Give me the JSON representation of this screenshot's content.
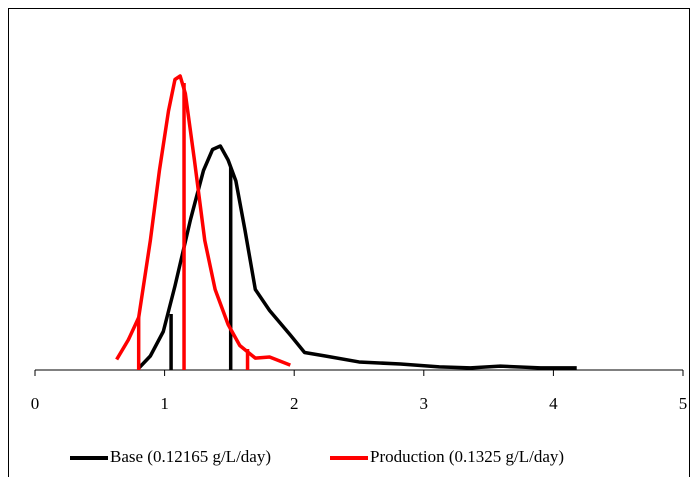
{
  "chart_data": {
    "type": "line",
    "xlim": [
      0,
      5
    ],
    "xticks": [
      0,
      1,
      2,
      3,
      4,
      5
    ],
    "ylim": [
      0,
      1
    ],
    "grid": false,
    "legend": "bottom",
    "series": [
      {
        "name": "Base (0.12165 g/L/day)",
        "color": "#000000",
        "x": [
          0.8,
          0.89,
          0.99,
          1.08,
          1.2,
          1.3,
          1.37,
          1.43,
          1.49,
          1.55,
          1.62,
          1.7,
          1.81,
          1.97,
          2.08,
          2.24,
          2.5,
          2.82,
          3.12,
          3.36,
          3.59,
          3.9,
          4.18
        ],
        "values": [
          0.005,
          0.04,
          0.11,
          0.24,
          0.43,
          0.57,
          0.63,
          0.64,
          0.6,
          0.54,
          0.4,
          0.23,
          0.17,
          0.1,
          0.05,
          0.04,
          0.023,
          0.017,
          0.009,
          0.006,
          0.011,
          0.006,
          0.006
        ],
        "marker_x": [
          1.05,
          1.51
        ],
        "marker_values": [
          0.16,
          0.58
        ]
      },
      {
        "name": "Production (0.1325 g/L/day)",
        "color": "#ff0000",
        "x": [
          0.63,
          0.72,
          0.8,
          0.89,
          0.96,
          1.03,
          1.08,
          1.12,
          1.16,
          1.23,
          1.31,
          1.39,
          1.49,
          1.58,
          1.7,
          1.81,
          1.97
        ],
        "values": [
          0.03,
          0.086,
          0.15,
          0.37,
          0.57,
          0.74,
          0.83,
          0.84,
          0.79,
          0.6,
          0.37,
          0.23,
          0.13,
          0.07,
          0.034,
          0.037,
          0.014
        ],
        "marker_x": [
          0.8,
          1.15,
          1.64
        ],
        "marker_values": [
          0.15,
          0.82,
          0.06
        ]
      }
    ]
  }
}
